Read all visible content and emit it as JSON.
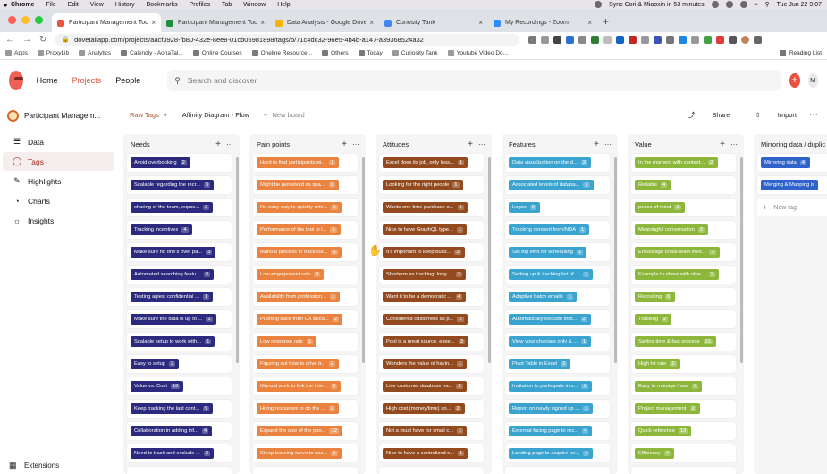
{
  "macos": {
    "menus": [
      "Chrome",
      "File",
      "Edit",
      "View",
      "History",
      "Bookmarks",
      "Profiles",
      "Tab",
      "Window",
      "Help"
    ],
    "meeting_reminder": "Sync Cori & Miaoxin in 53 minutes",
    "clock": "Tue Jun 22  9:07"
  },
  "browser": {
    "tabs": [
      {
        "title": "Participant Management Tool",
        "color": "#e9563f",
        "active": true
      },
      {
        "title": "Participant Management Tool",
        "color": "#1e8e3e",
        "active": false
      },
      {
        "title": "Data Analysis - Google Drive",
        "color": "#f4b400",
        "active": false
      },
      {
        "title": "Curiosity Tank",
        "color": "#4285f4",
        "active": false
      },
      {
        "title": "My Recordings - Zoom",
        "color": "#2d8cff",
        "active": false
      }
    ],
    "url": "dovetailapp.com/projects/aacf3928-fb80-432e-8ee8-01cb05981898/tags/b/71c4dc32-96e5-4b4b-a147-a39368524a32",
    "bookmarks": [
      "Apps",
      "ProxyLib",
      "Analytics",
      "Calendly - AonaTal...",
      "Online Courses",
      "Oneline Resource...",
      "Others",
      "Today",
      "Curiosity Tank",
      "Youtube Video Do..."
    ],
    "reading_list": "Reading List"
  },
  "app": {
    "nav": [
      "Home",
      "Projects",
      "People"
    ],
    "search_placeholder": "Search and discover",
    "avatar_initial": "M",
    "project_name": "Participant Managem...",
    "sidebar": [
      {
        "label": "Data",
        "icon": "layers-icon",
        "active": false
      },
      {
        "label": "Tags",
        "icon": "tag-icon",
        "active": true
      },
      {
        "label": "Highlights",
        "icon": "highlighter-icon",
        "active": false
      },
      {
        "label": "Charts",
        "icon": "chart-icon",
        "active": false
      },
      {
        "label": "Insights",
        "icon": "lightbulb-icon",
        "active": false
      }
    ],
    "extensions_label": "Extensions",
    "board_tabs": [
      "Raw Tags",
      "Affinity Diagram - Flow",
      "New board"
    ],
    "share_label": "Share",
    "import_label": "Import"
  },
  "columns": [
    {
      "title": "Needs",
      "color": "#2b2a7e",
      "cards": [
        {
          "label": "Avoid overbooking",
          "count": "2"
        },
        {
          "label": "Scalable regarding the recr...",
          "count": "5"
        },
        {
          "label": "sharing of the team, expos...",
          "count": "2"
        },
        {
          "label": "Tracking incentives",
          "count": "4"
        },
        {
          "label": "Make sure no one's over pa...",
          "count": "3"
        },
        {
          "label": "Automated searching featu...",
          "count": "5"
        },
        {
          "label": "Testing agiest confidential ...",
          "count": "1"
        },
        {
          "label": "Make sure the data is up to ...",
          "count": "1"
        },
        {
          "label": "Scalable setup to work with...",
          "count": "1"
        },
        {
          "label": "Easy to setup",
          "count": "2"
        },
        {
          "label": "Value vs. Cost",
          "count": "16"
        },
        {
          "label": "Keep tracking the last cont...",
          "count": "9"
        },
        {
          "label": "Collaboration in adding inf...",
          "count": "4"
        },
        {
          "label": "Need to track and exclude ...",
          "count": "2"
        },
        {
          "label": "",
          "count": ""
        }
      ]
    },
    {
      "title": "Pain points",
      "color": "#e9833f",
      "cards": [
        {
          "label": "Hard to find participants wi...",
          "count": "1"
        },
        {
          "label": "Might be perceived as spa...",
          "count": "1"
        },
        {
          "label": "No easy way to quickly refe...",
          "count": "2"
        },
        {
          "label": "Performance of the tool to l...",
          "count": "1"
        },
        {
          "label": "Manual process to track los...",
          "count": "3"
        },
        {
          "label": "Low engagement rate",
          "count": "3"
        },
        {
          "label": "Availability from profession...",
          "count": "1"
        },
        {
          "label": "Pushing back from CX beca...",
          "count": "2"
        },
        {
          "label": "Low response rate",
          "count": "1"
        },
        {
          "label": "Figuring out how to drive tr...",
          "count": "2"
        },
        {
          "label": "Manual work to link the inte...",
          "count": "2"
        },
        {
          "label": "Hiring resources to do the ...",
          "count": "2"
        },
        {
          "label": "Expand the size of the poo...",
          "count": "12"
        },
        {
          "label": "Steep learning curve to use...",
          "count": "1"
        },
        {
          "label": "",
          "count": ""
        }
      ]
    },
    {
      "title": "Attitudes",
      "color": "#934a1e",
      "cards": [
        {
          "label": "Excel does its job, only less...",
          "count": "1"
        },
        {
          "label": "Looking for the right people",
          "count": "1"
        },
        {
          "label": "Wants one-time purchase o...",
          "count": "1"
        },
        {
          "label": "Nice to have GraphQL type...",
          "count": "1"
        },
        {
          "label": "It's important to keep build...",
          "count": "3"
        },
        {
          "label": "Shorterm as tracking, long ...",
          "count": "3"
        },
        {
          "label": "Want it to be a democratic ...",
          "count": "4"
        },
        {
          "label": "Considered customers as p...",
          "count": "2"
        },
        {
          "label": "Pool is a great source, espe...",
          "count": "3"
        },
        {
          "label": "Wonders the value of havin...",
          "count": "1"
        },
        {
          "label": "Live customer database ha...",
          "count": "2"
        },
        {
          "label": "High cost (money/time) an...",
          "count": "2"
        },
        {
          "label": "Not a must have for small c...",
          "count": "1"
        },
        {
          "label": "Nice to have a centralized s...",
          "count": "1"
        },
        {
          "label": "",
          "count": ""
        }
      ]
    },
    {
      "title": "Features",
      "color": "#3aa3cf",
      "cards": [
        {
          "label": "Data visualization on the d...",
          "count": "2"
        },
        {
          "label": "Associated levels of databa...",
          "count": "1"
        },
        {
          "label": "Logos",
          "count": "2"
        },
        {
          "label": "Tracking consent form/NDA",
          "count": "1"
        },
        {
          "label": "Set top limit for scheduling",
          "count": "1"
        },
        {
          "label": "Setting up & tracking list of ...",
          "count": "1"
        },
        {
          "label": "Adaptive batch emails",
          "count": "1"
        },
        {
          "label": "Automatically exclude thro...",
          "count": "2"
        },
        {
          "label": "View your changes only & ...",
          "count": "1"
        },
        {
          "label": "Pivot Table in Excel",
          "count": "2"
        },
        {
          "label": "Invitation to participate in s...",
          "count": "1"
        },
        {
          "label": "Report on newly signed up ...",
          "count": "1"
        },
        {
          "label": "External-facing page to rec...",
          "count": "4"
        },
        {
          "label": "Landing page to acquire ne...",
          "count": "1"
        },
        {
          "label": "",
          "count": ""
        }
      ]
    },
    {
      "title": "Value",
      "color": "#8db73b",
      "cards": [
        {
          "label": "In the moment with context...",
          "count": "2"
        },
        {
          "label": "Reliable",
          "count": "4"
        },
        {
          "label": "peace of mind",
          "count": "1"
        },
        {
          "label": "Meaningful conversation",
          "count": "2"
        },
        {
          "label": "Encourage cross-team invo...",
          "count": "1"
        },
        {
          "label": "Example to share with othe...",
          "count": "2"
        },
        {
          "label": "Recruiting",
          "count": "6"
        },
        {
          "label": "Tracking",
          "count": "2"
        },
        {
          "label": "Saving time & fast process",
          "count": "21"
        },
        {
          "label": "High hit rate",
          "count": "2"
        },
        {
          "label": "Easy to manage / use",
          "count": "6"
        },
        {
          "label": "Project management",
          "count": "2"
        },
        {
          "label": "Quick reference",
          "count": "13"
        },
        {
          "label": "Efficiency",
          "count": "4"
        },
        {
          "label": "",
          "count": ""
        }
      ]
    },
    {
      "title": "Mirroring data / duplic",
      "color": "#2f63c9",
      "cards": [
        {
          "label": "Mirroring data",
          "count": "4"
        },
        {
          "label": "Merging & Mapping is",
          "count": ""
        }
      ],
      "new_tag": "New tag"
    }
  ]
}
